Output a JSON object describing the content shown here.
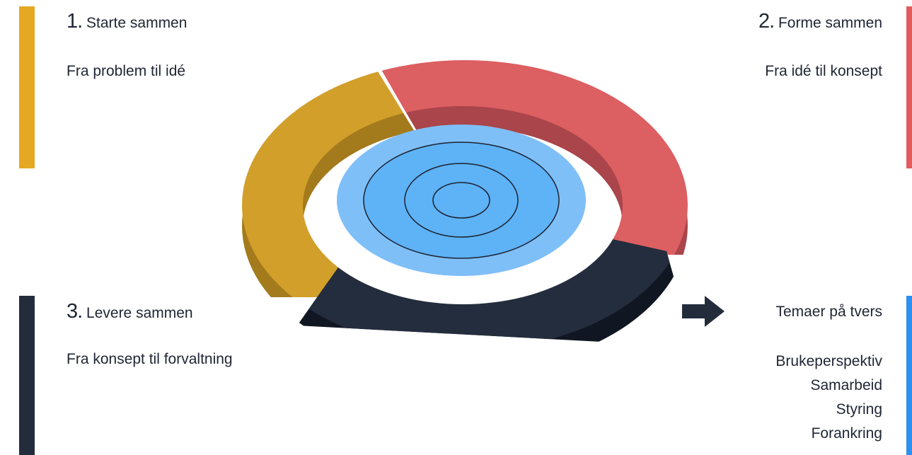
{
  "phases": [
    {
      "number": "1.",
      "title": "Starte sammen",
      "subtitle": "Fra problem til idé",
      "color": "#e5a823"
    },
    {
      "number": "2.",
      "title": "Forme sammen",
      "subtitle": "Fra idé til konsept",
      "color": "#e25b5e"
    },
    {
      "number": "3.",
      "title": "Levere sammen",
      "subtitle": "Fra konsept til forvaltning",
      "color": "#232c3b"
    }
  ],
  "themes": {
    "title": "Temaer på tvers",
    "color": "#2b90f0",
    "items": [
      "Brukeperspektiv",
      "Samarbeid",
      "Styring",
      "Forankring"
    ]
  },
  "icons": {
    "arrow": "right-arrow-icon"
  }
}
